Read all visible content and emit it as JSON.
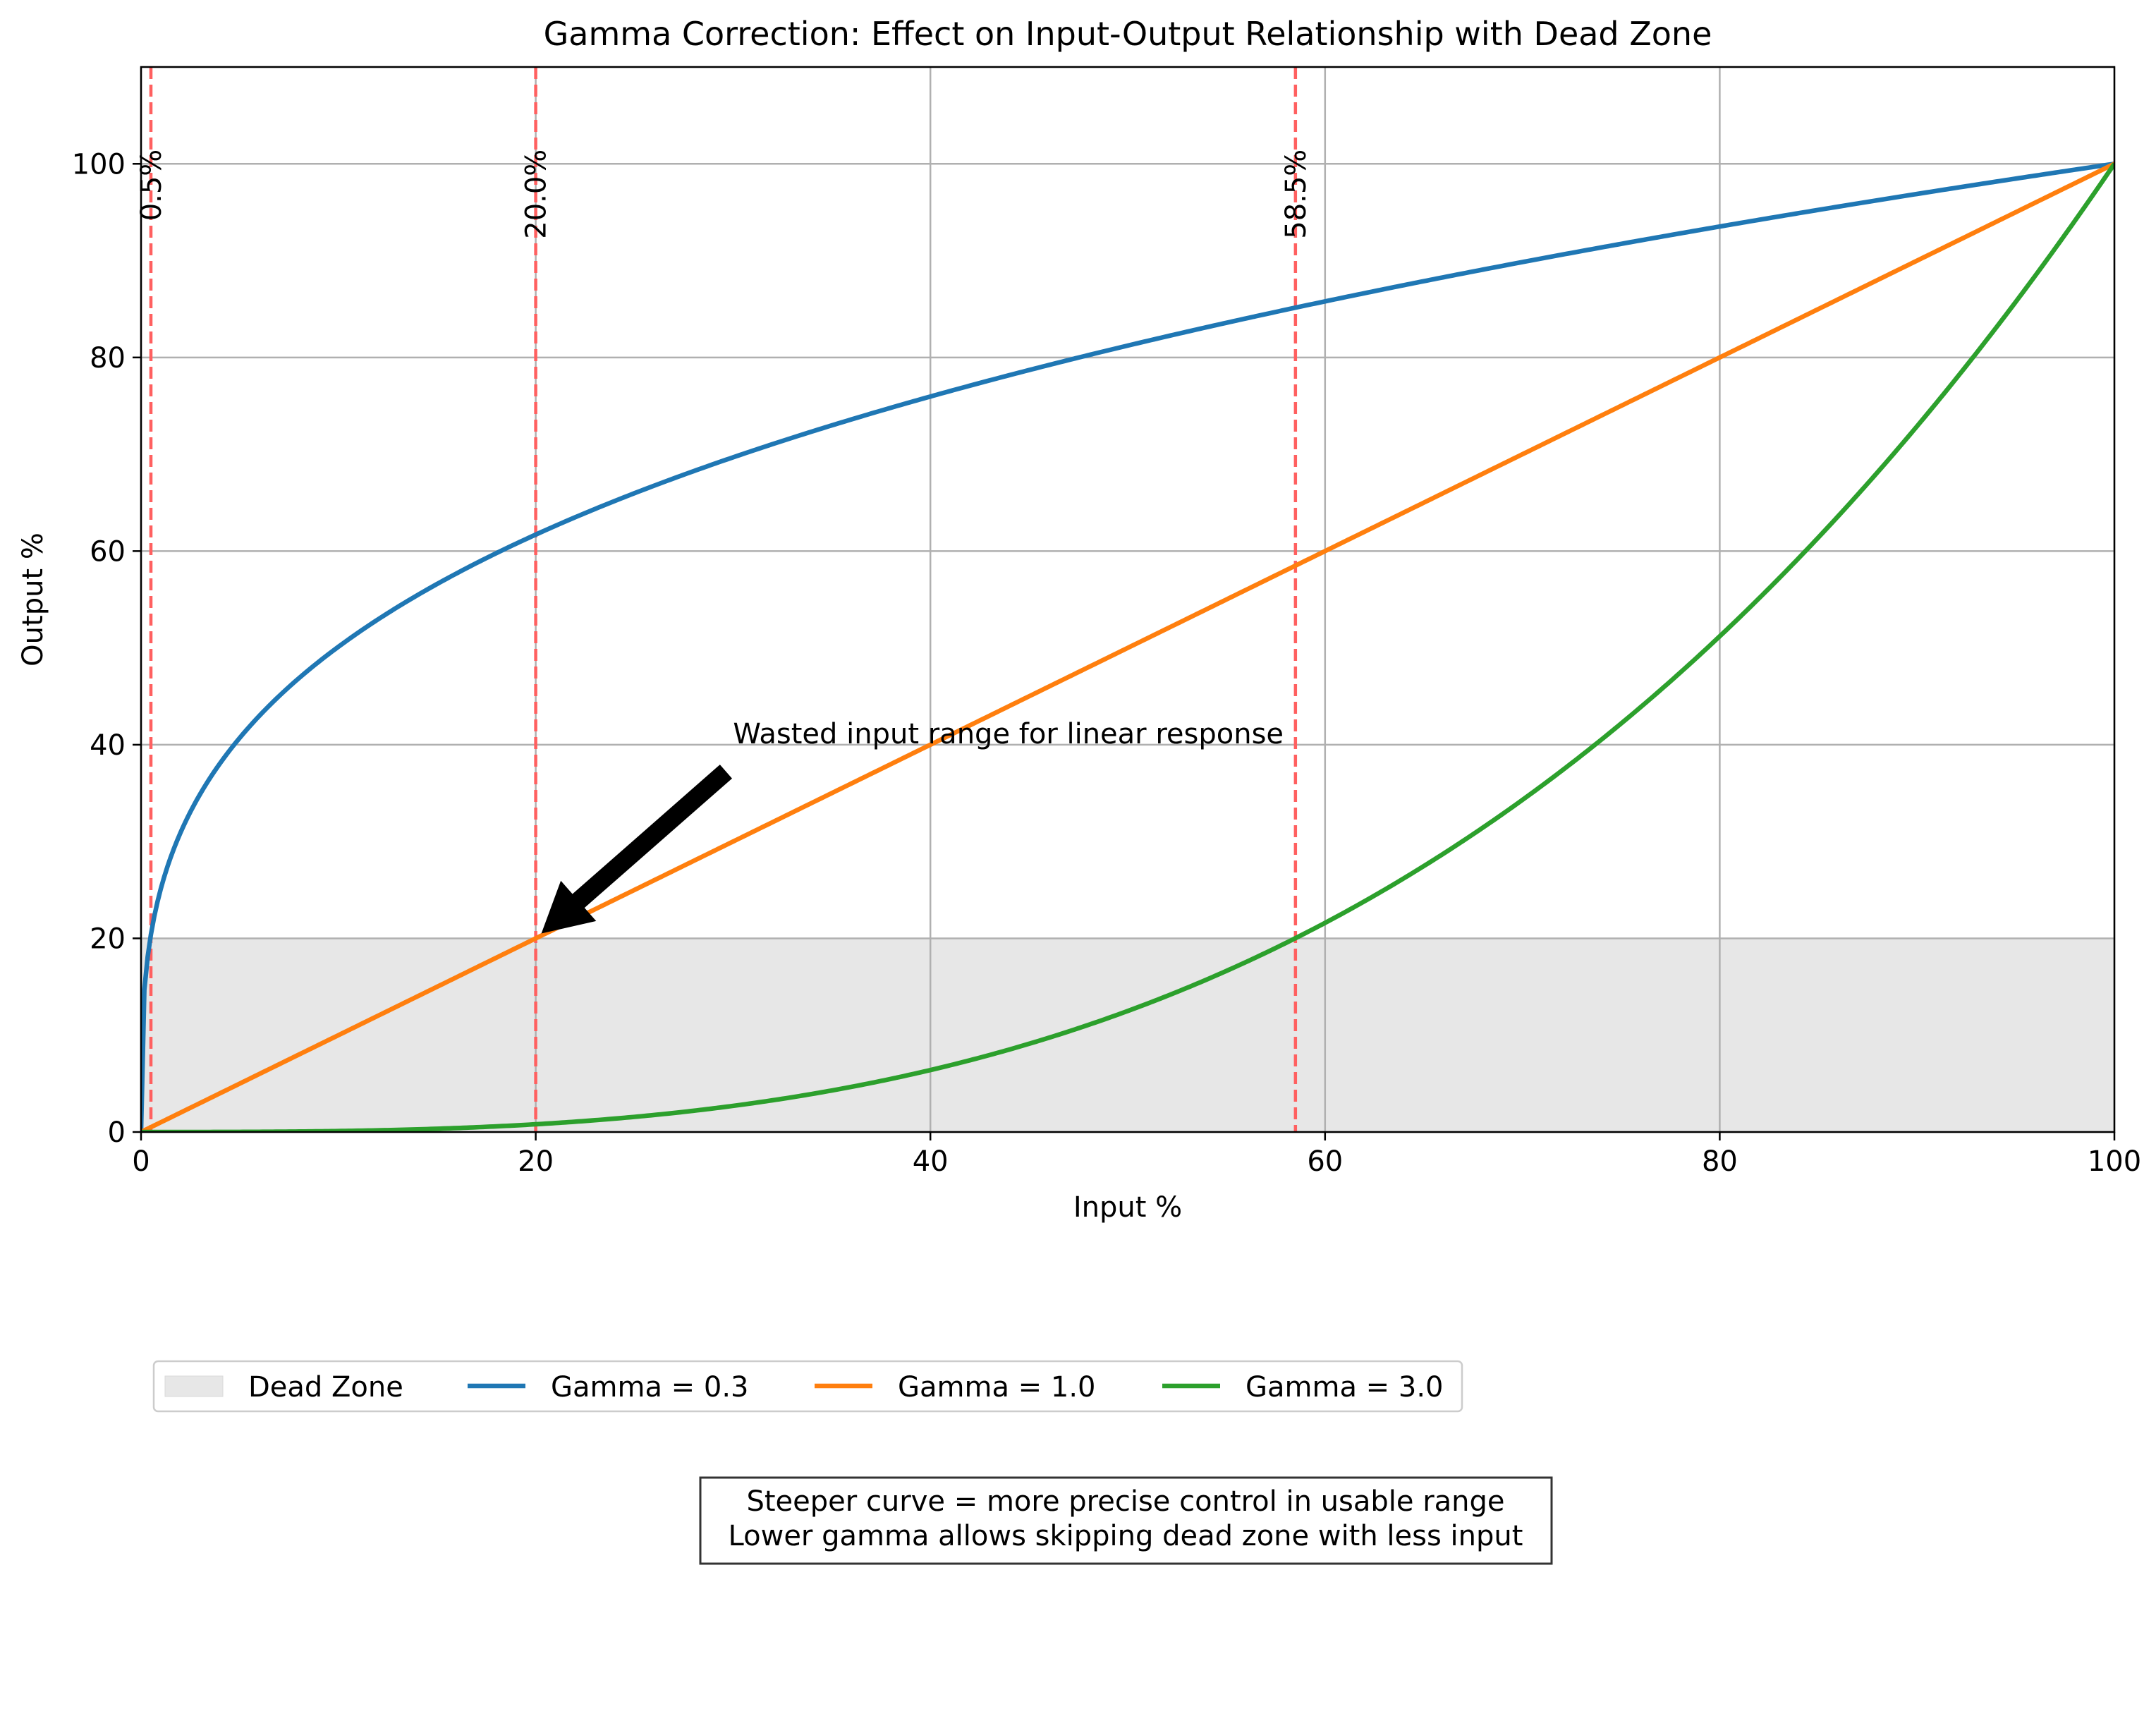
{
  "chart_data": {
    "type": "line",
    "title": "Gamma Correction: Effect on Input-Output Relationship with Dead Zone",
    "xlabel": "Input %",
    "ylabel": "Output %",
    "xlim": [
      0,
      100
    ],
    "ylim": [
      0,
      110
    ],
    "xticks": [
      0,
      20,
      40,
      60,
      80,
      100
    ],
    "yticks": [
      0,
      20,
      40,
      60,
      80,
      100
    ],
    "grid": true,
    "dead_zone": {
      "label": "Dead Zone",
      "y_range": [
        0,
        20
      ],
      "color": "#e7e7e7"
    },
    "series": [
      {
        "name": "Gamma = 0.3",
        "gamma": 0.3,
        "color": "#1f77b4"
      },
      {
        "name": "Gamma = 1.0",
        "gamma": 1.0,
        "color": "#ff7f0e"
      },
      {
        "name": "Gamma = 3.0",
        "gamma": 3.0,
        "color": "#2ca02c"
      }
    ],
    "dead_zone_crossings": [
      {
        "x": 0.5,
        "label": "0.5%"
      },
      {
        "x": 20.0,
        "label": "20.0%"
      },
      {
        "x": 58.5,
        "label": "58.5%"
      }
    ],
    "crossing_line_color": "#ff6060",
    "annotation": {
      "text": "Wasted input range for linear response",
      "xy": [
        20,
        20
      ],
      "xytext": [
        30,
        40
      ]
    },
    "legend_placement": "below plot",
    "note_lines": [
      "Steeper curve = more precise control in usable range",
      "Lower gamma allows skipping dead zone with less input"
    ]
  }
}
